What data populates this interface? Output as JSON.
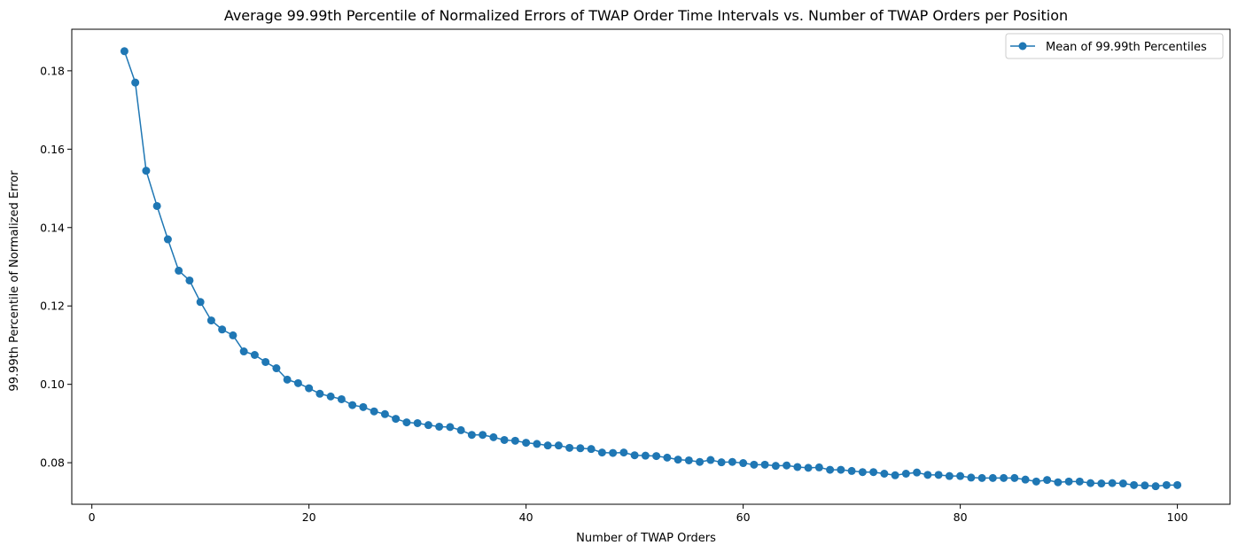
{
  "colors": {
    "series": "#1f77b4",
    "axis": "#000000",
    "legend_border": "#cccccc",
    "background": "#ffffff"
  },
  "chart_data": {
    "type": "line",
    "title": "Average 99.99th Percentile of Normalized Errors of TWAP Order Time Intervals vs. Number of TWAP Orders per Position",
    "xlabel": "Number of TWAP Orders",
    "ylabel": "99.99th Percentile of Normalized Error",
    "xlim": [
      -1.85,
      104.85
    ],
    "ylim": [
      0.0694,
      0.1906
    ],
    "xticks": [
      0,
      20,
      40,
      60,
      80,
      100
    ],
    "xtick_labels": [
      "0",
      "20",
      "40",
      "60",
      "80",
      "100"
    ],
    "yticks": [
      0.08,
      0.1,
      0.12,
      0.14,
      0.16,
      0.18
    ],
    "ytick_labels": [
      "0.08",
      "0.10",
      "0.12",
      "0.14",
      "0.16",
      "0.18"
    ],
    "grid": false,
    "legend_position": "top-right",
    "marker": "circle",
    "series": [
      {
        "name": "Mean of 99.99th Percentiles",
        "x": [
          3,
          4,
          5,
          6,
          7,
          8,
          9,
          10,
          11,
          12,
          13,
          14,
          15,
          16,
          17,
          18,
          19,
          20,
          21,
          22,
          23,
          24,
          25,
          26,
          27,
          28,
          29,
          30,
          31,
          32,
          33,
          34,
          35,
          36,
          37,
          38,
          39,
          40,
          41,
          42,
          43,
          44,
          45,
          46,
          47,
          48,
          49,
          50,
          51,
          52,
          53,
          54,
          55,
          56,
          57,
          58,
          59,
          60,
          61,
          62,
          63,
          64,
          65,
          66,
          67,
          68,
          69,
          70,
          71,
          72,
          73,
          74,
          75,
          76,
          77,
          78,
          79,
          80,
          81,
          82,
          83,
          84,
          85,
          86,
          87,
          88,
          89,
          90,
          91,
          92,
          93,
          94,
          95,
          96,
          97,
          98,
          99,
          100
        ],
        "values": [
          0.185,
          0.177,
          0.1545,
          0.1455,
          0.137,
          0.129,
          0.1265,
          0.121,
          0.1163,
          0.114,
          0.1125,
          0.1084,
          0.1075,
          0.1057,
          0.1041,
          0.1012,
          0.1003,
          0.099,
          0.0976,
          0.0969,
          0.0962,
          0.0947,
          0.0942,
          0.0931,
          0.0924,
          0.0912,
          0.0903,
          0.0901,
          0.0896,
          0.0892,
          0.0891,
          0.0883,
          0.0871,
          0.0871,
          0.0865,
          0.0858,
          0.0856,
          0.0851,
          0.0848,
          0.0844,
          0.0844,
          0.0838,
          0.0837,
          0.0835,
          0.0826,
          0.0825,
          0.0826,
          0.0819,
          0.0818,
          0.0817,
          0.0813,
          0.0808,
          0.0806,
          0.0802,
          0.0807,
          0.0801,
          0.0802,
          0.0799,
          0.0795,
          0.0795,
          0.0792,
          0.0793,
          0.0789,
          0.0787,
          0.0788,
          0.0782,
          0.0782,
          0.0779,
          0.0776,
          0.0776,
          0.0772,
          0.0768,
          0.0772,
          0.0775,
          0.0769,
          0.0769,
          0.0766,
          0.0766,
          0.0762,
          0.0761,
          0.0761,
          0.0761,
          0.0761,
          0.0757,
          0.0752,
          0.0756,
          0.075,
          0.0752,
          0.0752,
          0.0748,
          0.0747,
          0.0748,
          0.0747,
          0.0743,
          0.0742,
          0.074,
          0.0743,
          0.0743
        ]
      }
    ]
  }
}
